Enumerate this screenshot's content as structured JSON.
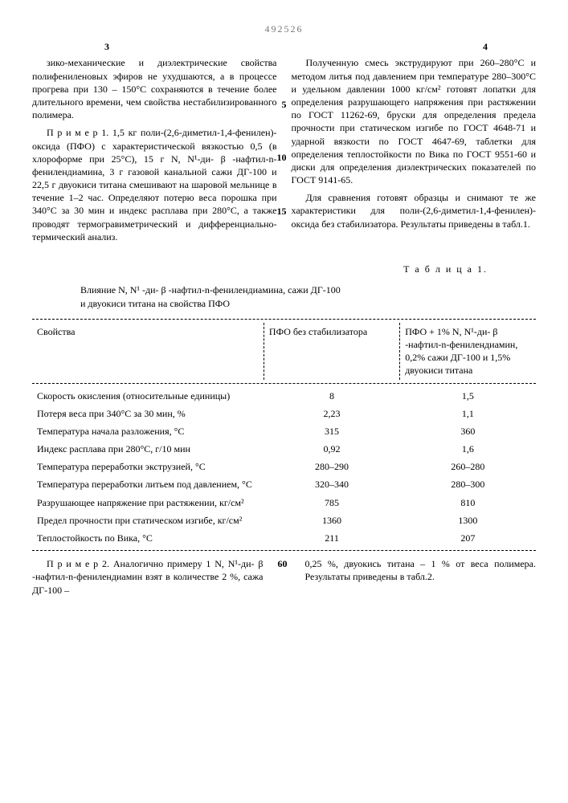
{
  "docnum": "492526",
  "pagenum_left": "3",
  "pagenum_right": "4",
  "left_col": {
    "p1": "зико-механические и диэлектрические свойства полифениленовых эфиров не ухудшаются, а в процессе прогрева при 130 – 150°C сохраняются в течение более длительного времени, чем свойства нестабилизированного полимера.",
    "p2": "П р и м е р 1. 1,5 кг поли-(2,6-диметил-1,4-фенилен)-оксида (ПФО) с характеристической вязкостью 0,5 (в хлороформе при 25°С), 15 г N, N¹-ди- β -нафтил-n-фенилендиамина, 3 г газовой канальной сажи ДГ-100 и 22,5 г двуокиси титана смешивают на шаровой мельнице в течение 1–2 час. Определяют потерю веса порошка при 340°С за 30 мин и индекс расплава при 280°С, а также проводят термогравиметрический и дифференциально-термический анализ."
  },
  "right_col": {
    "p1": "Полученную смесь экструдируют при 260–280°С и методом литья под давлением при температуре 280–300°С и удельном давлении 1000 кг/см² готовят лопатки для определения разрушающего напряжения при растяжении по ГОСТ 11262-69, бруски для определения предела прочности при статическом изгибе по ГОСТ 4648-71 и ударной вязкости по ГОСТ 4647-69, таблетки для определения теплостойкости по Вика по ГОСТ 9551-60 и диски для определения диэлектрических показателей по ГОСТ 9141-65.",
    "p2": "Для сравнения готовят образцы и снимают те же характеристики для поли-(2,6-диметил-1,4-фенилен)-оксида без стабилизатора. Результаты приведены в табл.1."
  },
  "line_markers": {
    "m5": "5",
    "m10": "10",
    "m15": "15"
  },
  "table_caption": "Т а б л и ц а  1.",
  "table_intro_l1": "Влияние N, N¹ -ди- β -нафтил-n-фенилендиамина, сажи ДГ-100",
  "table_intro_l2": "и двуокиси титана на свойства ПФО",
  "table": {
    "head": {
      "c1": "Свойства",
      "c2": "ПФО без стабилизатора",
      "c3": "ПФО + 1% N, N¹-ди- β -нафтил-n-фенилендиамин, 0,2% сажи ДГ-100 и 1,5% двуокиси титана"
    },
    "rows": [
      {
        "c1": "Скорость окисления (относительные единицы)",
        "c2": "8",
        "c3": "1,5"
      },
      {
        "c1": "Потеря веса при 340°С за 30 мин, %",
        "c2": "2,23",
        "c3": "1,1"
      },
      {
        "c1": "Температура начала разложения, °С",
        "c2": "315",
        "c3": "360"
      },
      {
        "c1": "Индекс расплава при 280°С, г/10 мин",
        "c2": "0,92",
        "c3": "1,6"
      },
      {
        "c1": "Температура переработки экструзией, °С",
        "c2": "280–290",
        "c3": "260–280"
      },
      {
        "c1": "Температура переработки литьем под давлением, °С",
        "c2": "320–340",
        "c3": "280–300"
      },
      {
        "c1": "Разрушающее напряжение при растяжении, кг/см²",
        "c2": "785",
        "c3": "810"
      },
      {
        "c1": "Предел прочности при статическом изгибе, кг/см²",
        "c2": "1360",
        "c3": "1300"
      },
      {
        "c1": "Теплостойкость по Вика, °С",
        "c2": "211",
        "c3": "207"
      }
    ]
  },
  "example2": {
    "mid_marker": "60",
    "left": "П р и м е р 2. Аналогично примеру 1 N, N¹-ди- β -нафтил-n-фенилендиамин взят в количестве 2 %, сажа ДГ-100 –",
    "right": "0,25 %, двуокись титана – 1 % от веса полимера. Результаты приведены в табл.2."
  }
}
